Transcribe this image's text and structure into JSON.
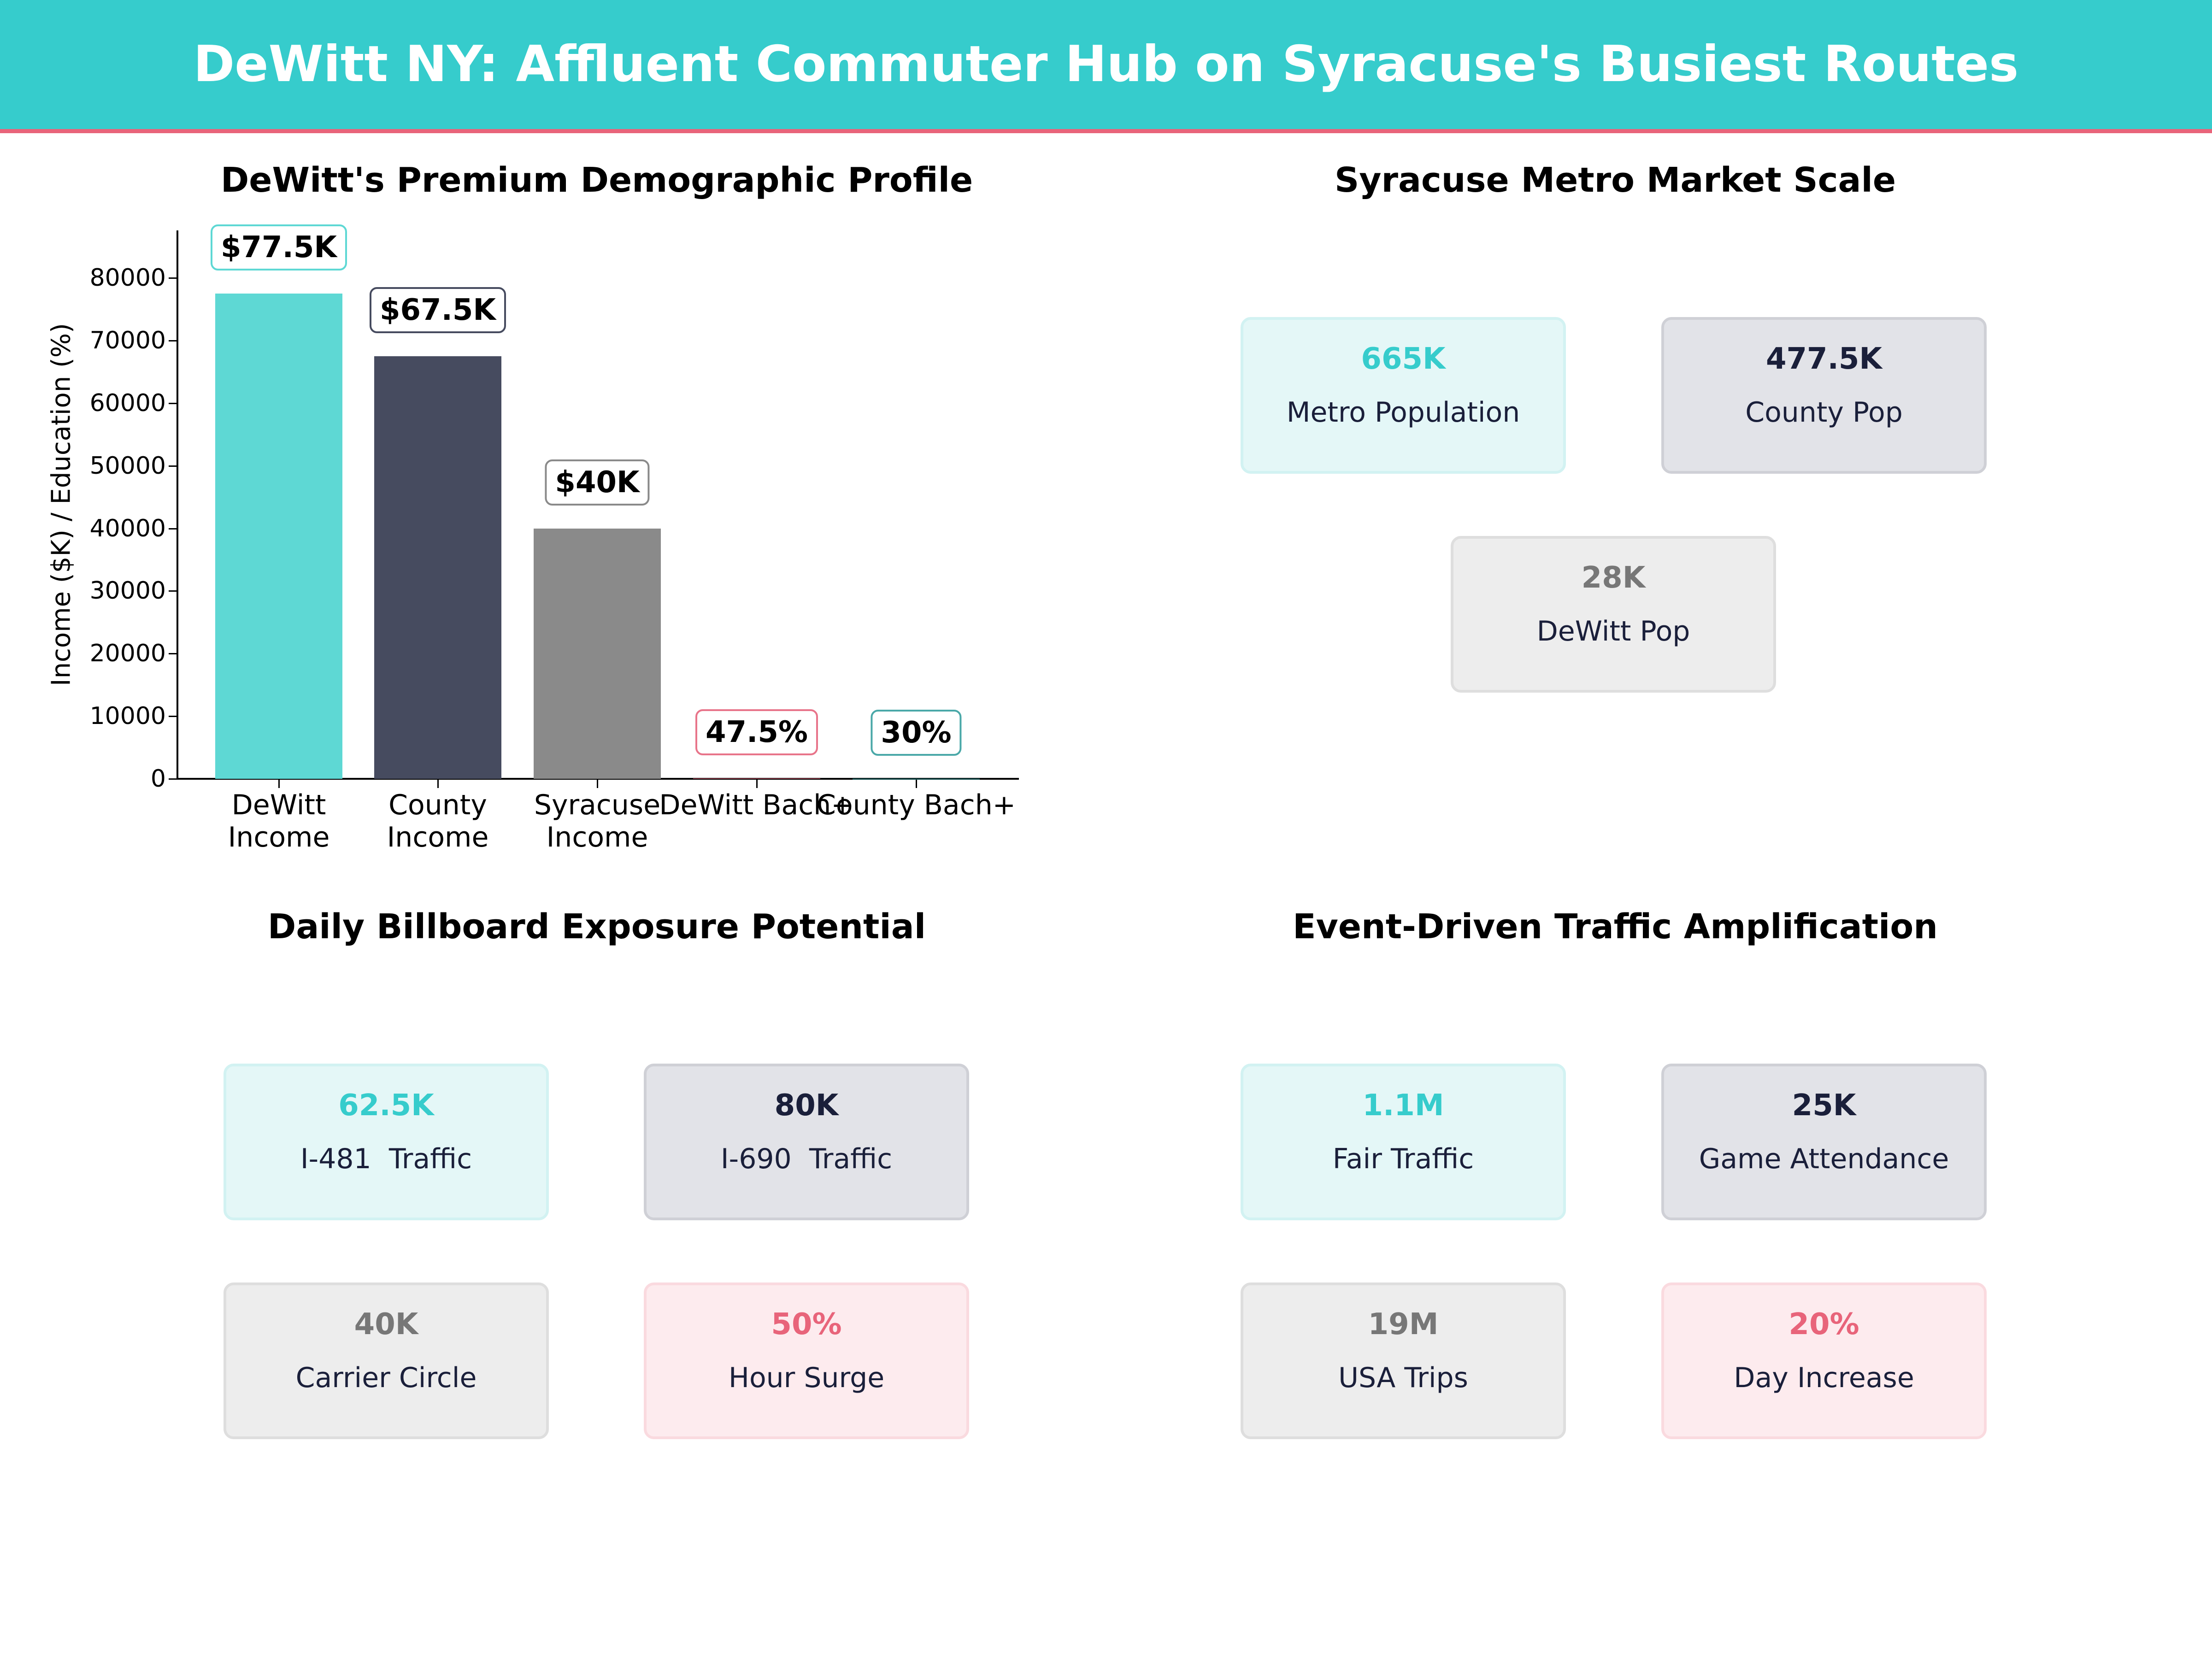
{
  "header": {
    "title": "DeWitt NY: Affluent Commuter Hub on Syracuse's Busiest Routes"
  },
  "colors": {
    "teal": "#36CCCC",
    "navy": "#464B5F",
    "gray": "#8A8A8A",
    "pink": "#E8647A",
    "accent_line": "#E8647A"
  },
  "panels": {
    "demographic": {
      "title": "DeWitt's Premium Demographic Profile"
    },
    "metro": {
      "title": "Syracuse Metro Market Scale",
      "cards": [
        {
          "value": "665K",
          "label": "Metro Population",
          "style": "teal"
        },
        {
          "value": "477.5K",
          "label": "County Pop",
          "style": "navy"
        },
        {
          "value": "28K",
          "label": "DeWitt Pop",
          "style": "gray"
        }
      ]
    },
    "billboard": {
      "title": "Daily Billboard Exposure Potential",
      "cards": [
        {
          "value": "62.5K",
          "label": "I-481  Traffic",
          "style": "teal"
        },
        {
          "value": "80K",
          "label": "I-690  Traffic",
          "style": "navy"
        },
        {
          "value": "40K",
          "label": "Carrier Circle",
          "style": "gray"
        },
        {
          "value": "50%",
          "label": "Hour Surge",
          "style": "pink"
        }
      ]
    },
    "events": {
      "title": "Event-Driven Traffic Amplification",
      "cards": [
        {
          "value": "1.1M",
          "label": "Fair Traffic",
          "style": "teal"
        },
        {
          "value": "25K",
          "label": "Game Attendance",
          "style": "navy"
        },
        {
          "value": "19M",
          "label": "USA Trips",
          "style": "gray"
        },
        {
          "value": "20%",
          "label": "Day Increase",
          "style": "pink"
        }
      ]
    }
  },
  "chart_data": {
    "type": "bar",
    "title": "DeWitt's Premium Demographic Profile",
    "xlabel": "",
    "ylabel": "Income ($K) / Education (%)",
    "ylim": [
      0,
      87000
    ],
    "yticks": [
      0,
      10000,
      20000,
      30000,
      40000,
      50000,
      60000,
      70000,
      80000
    ],
    "categories": [
      "DeWitt\nIncome",
      "County\nIncome",
      "Syracuse\nIncome",
      "DeWitt Bach+",
      "County Bach+"
    ],
    "values": [
      77500,
      67500,
      40000,
      47.5,
      30
    ],
    "data_labels": [
      "$77.5K",
      "$67.5K",
      "$40K",
      "47.5%",
      "30%"
    ],
    "bar_colors": [
      "#5ED8D4",
      "#464B5F",
      "#8A8A8A",
      "#E8647A",
      "#36CCCC"
    ],
    "label_border_colors": [
      "#5ED8D4",
      "#464B5F",
      "#8A8A8A",
      "#E8748A",
      "#4AA8A8"
    ],
    "grid": false,
    "legend": null
  }
}
